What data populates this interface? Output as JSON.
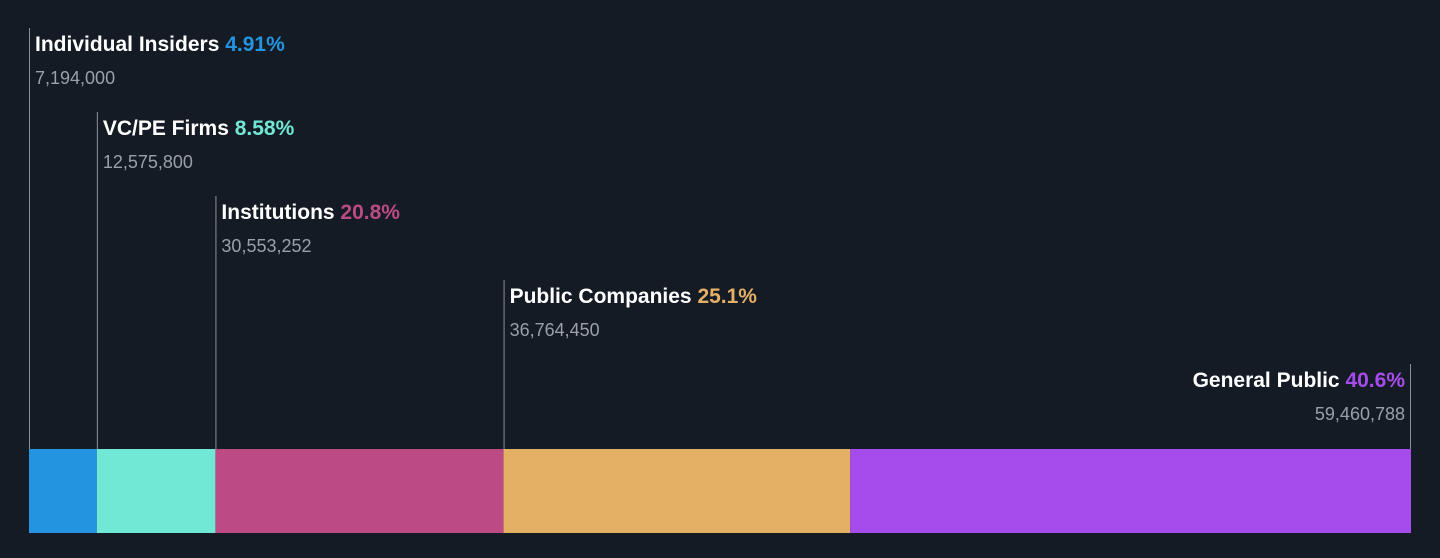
{
  "chart_data": {
    "type": "stacked-bar",
    "orientation": "horizontal",
    "segments": [
      {
        "name": "Individual Insiders",
        "percent_label": "4.91%",
        "percent": 4.91,
        "shares": 7194000,
        "shares_label": "7,194,000",
        "color": "#2394df"
      },
      {
        "name": "VC/PE Firms",
        "percent_label": "8.58%",
        "percent": 8.58,
        "shares": 12575800,
        "shares_label": "12,575,800",
        "color": "#71e7d6"
      },
      {
        "name": "Institutions",
        "percent_label": "20.8%",
        "percent": 20.8,
        "shares": 30553252,
        "shares_label": "30,553,252",
        "color": "#bb4a85"
      },
      {
        "name": "Public Companies",
        "percent_label": "25.1%",
        "percent": 25.1,
        "shares": 36764450,
        "shares_label": "36,764,450",
        "color": "#e4b066"
      },
      {
        "name": "General Public",
        "percent_label": "40.6%",
        "percent": 40.6,
        "shares": 59460788,
        "shares_label": "59,460,788",
        "color": "#a64ced"
      }
    ]
  },
  "theme": {
    "background": "#151b24",
    "label_color": "#ffffff",
    "count_color": "#9aa0a8"
  }
}
